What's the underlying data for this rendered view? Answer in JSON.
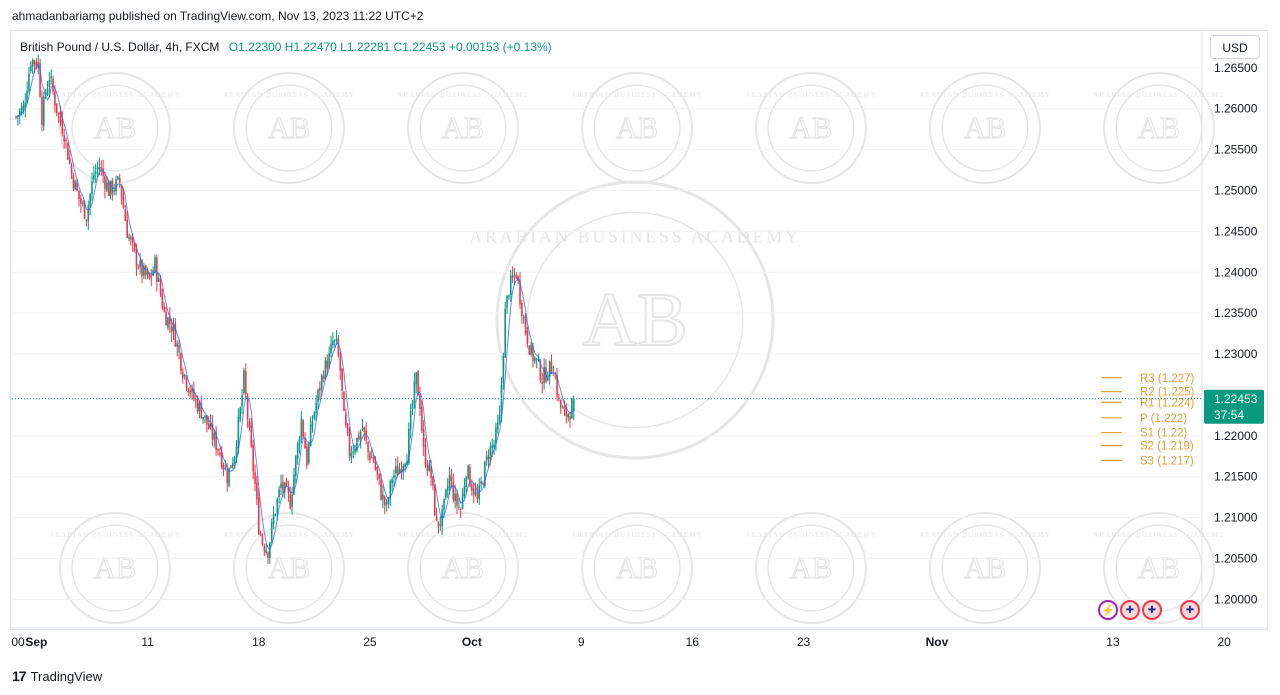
{
  "publisher_line": "ahmadanbariamg published on TradingView.com, Nov 13, 2023 11:22 UTC+2",
  "legend": {
    "symbol": "British Pound / U.S. Dollar, 4h, FXCM",
    "ohlc": "O1.22300  H1.22470  L1.22281  C1.22453  +0.00153 (+0.13%)"
  },
  "currency_button": "USD",
  "brand": "TradingView",
  "watermark_text": "ARABIAN BUSINESS ACADEMY",
  "watermark_monogram": "AB",
  "colors": {
    "up": "#089981",
    "down": "#f23645",
    "pivot": "#d9a53a",
    "ma": "#2962ff",
    "price_line": "#089981",
    "watermark": "#e6e6e6"
  },
  "chart_data": {
    "type": "candlestick",
    "title": "British Pound / U.S. Dollar, 4h, FXCM",
    "ylim": [
      1.1965,
      1.2695
    ],
    "y_ticks": [
      "1.26500",
      "1.26000",
      "1.25500",
      "1.25000",
      "1.24500",
      "1.24000",
      "1.23500",
      "1.23000",
      "1.22500",
      "1.22000",
      "1.21500",
      "1.21000",
      "1.20500",
      "1.20000"
    ],
    "x_ticks": [
      {
        "label": "00",
        "pos": 1.1
      },
      {
        "label": "Sep",
        "pos": 11,
        "bold": true
      },
      {
        "label": "11",
        "pos": 71
      },
      {
        "label": "18",
        "pos": 131
      },
      {
        "label": "25",
        "pos": 191
      },
      {
        "label": "Oct",
        "pos": 246,
        "bold": true
      },
      {
        "label": "9",
        "pos": 305
      },
      {
        "label": "16",
        "pos": 365
      },
      {
        "label": "23",
        "pos": 425
      },
      {
        "label": "Nov",
        "pos": 497,
        "bold": true
      },
      {
        "label": "13",
        "pos": 592
      },
      {
        "label": "20",
        "pos": 652
      }
    ],
    "path_closes": [
      [
        0,
        1.259
      ],
      [
        4,
        1.26
      ],
      [
        8,
        1.266
      ],
      [
        12,
        1.2655
      ],
      [
        14,
        1.259
      ],
      [
        16,
        1.262
      ],
      [
        18,
        1.264
      ],
      [
        22,
        1.26
      ],
      [
        26,
        1.257
      ],
      [
        30,
        1.252
      ],
      [
        34,
        1.249
      ],
      [
        38,
        1.247
      ],
      [
        42,
        1.252
      ],
      [
        45,
        1.253
      ],
      [
        50,
        1.25
      ],
      [
        56,
        1.251
      ],
      [
        60,
        1.245
      ],
      [
        64,
        1.242
      ],
      [
        68,
        1.24
      ],
      [
        72,
        1.239
      ],
      [
        75,
        1.241
      ],
      [
        80,
        1.235
      ],
      [
        85,
        1.233
      ],
      [
        90,
        1.228
      ],
      [
        95,
        1.225
      ],
      [
        100,
        1.223
      ],
      [
        106,
        1.22
      ],
      [
        110,
        1.218
      ],
      [
        114,
        1.215
      ],
      [
        118,
        1.218
      ],
      [
        121,
        1.223
      ],
      [
        123,
        1.227
      ],
      [
        126,
        1.22
      ],
      [
        129,
        1.214
      ],
      [
        131,
        1.209
      ],
      [
        133,
        1.207
      ],
      [
        136,
        1.206
      ],
      [
        139,
        1.21
      ],
      [
        143,
        1.214
      ],
      [
        148,
        1.212
      ],
      [
        151,
        1.217
      ],
      [
        154,
        1.222
      ],
      [
        157,
        1.217
      ],
      [
        160,
        1.222
      ],
      [
        163,
        1.225
      ],
      [
        166,
        1.228
      ],
      [
        169,
        1.2295
      ],
      [
        171,
        1.2315
      ],
      [
        173,
        1.231
      ],
      [
        175,
        1.228
      ],
      [
        177,
        1.222
      ],
      [
        180,
        1.218
      ],
      [
        183,
        1.219
      ],
      [
        187,
        1.221
      ],
      [
        190,
        1.218
      ],
      [
        193,
        1.217
      ],
      [
        197,
        1.213
      ],
      [
        200,
        1.211
      ],
      [
        203,
        1.215
      ],
      [
        207,
        1.216
      ],
      [
        211,
        1.218
      ],
      [
        214,
        1.224
      ],
      [
        216,
        1.227
      ],
      [
        218,
        1.224
      ],
      [
        220,
        1.218
      ],
      [
        224,
        1.215
      ],
      [
        227,
        1.209
      ],
      [
        230,
        1.21
      ],
      [
        234,
        1.215
      ],
      [
        237,
        1.212
      ],
      [
        240,
        1.211
      ],
      [
        243,
        1.216
      ],
      [
        246,
        1.214
      ],
      [
        249,
        1.212
      ],
      [
        252,
        1.215
      ],
      [
        255,
        1.218
      ],
      [
        258,
        1.219
      ],
      [
        261,
        1.222
      ],
      [
        264,
        1.235
      ],
      [
        266,
        1.238
      ],
      [
        268,
        1.239
      ],
      [
        270,
        1.24
      ],
      [
        272,
        1.237
      ],
      [
        275,
        1.233
      ],
      [
        278,
        1.23
      ],
      [
        281,
        1.229
      ],
      [
        284,
        1.227
      ],
      [
        287,
        1.228
      ],
      [
        290,
        1.2285
      ],
      [
        293,
        1.224
      ],
      [
        296,
        1.2225
      ],
      [
        299,
        1.223
      ],
      [
        301,
        1.2245
      ]
    ],
    "last_price": {
      "value": "1.22453",
      "countdown": "37:54"
    },
    "pivot_levels": [
      {
        "label": "R3 (1.227)",
        "value": 1.2271
      },
      {
        "label": "R2 (1.225)",
        "value": 1.2254
      },
      {
        "label": "R1 (1.224)",
        "value": 1.2241
      },
      {
        "label": "P (1.222)",
        "value": 1.2222
      },
      {
        "label": "S1 (1.22)",
        "value": 1.2204
      },
      {
        "label": "S2 (1.219)",
        "value": 1.2188
      },
      {
        "label": "S3 (1.217)",
        "value": 1.217
      }
    ]
  }
}
